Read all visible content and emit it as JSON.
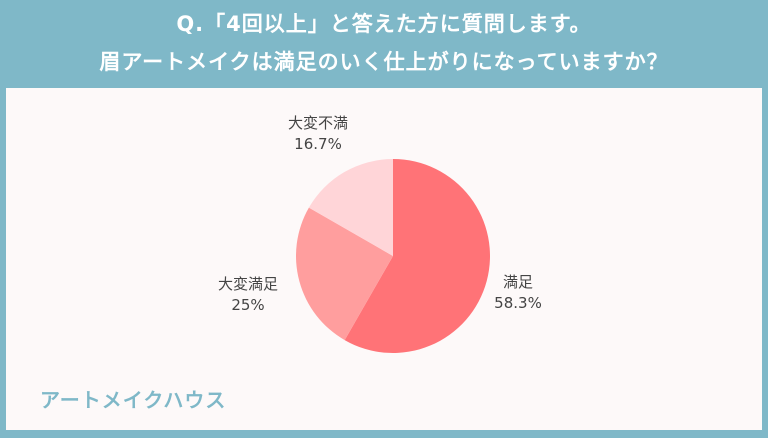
{
  "header": {
    "line1": "Q.「4回以上」と答えた方に質問します。",
    "line2": "眉アートメイクは満足のいく仕上がりになっていますか？"
  },
  "chart_data": {
    "type": "pie",
    "start": "top",
    "direction": "clockwise",
    "slices": [
      {
        "label": "満足",
        "value": 58.3,
        "value_label": "58.3%",
        "color": "#ff7377"
      },
      {
        "label": "大変満足",
        "value": 25,
        "value_label": "25%",
        "color": "#ff9e9e"
      },
      {
        "label": "大変不満",
        "value": 16.7,
        "value_label": "16.7%",
        "color": "#ffd5d8"
      }
    ]
  },
  "logo": "アートメイクハウス",
  "colors": {
    "frame": "#7fb8c8",
    "panel": "#fdf9f9"
  }
}
